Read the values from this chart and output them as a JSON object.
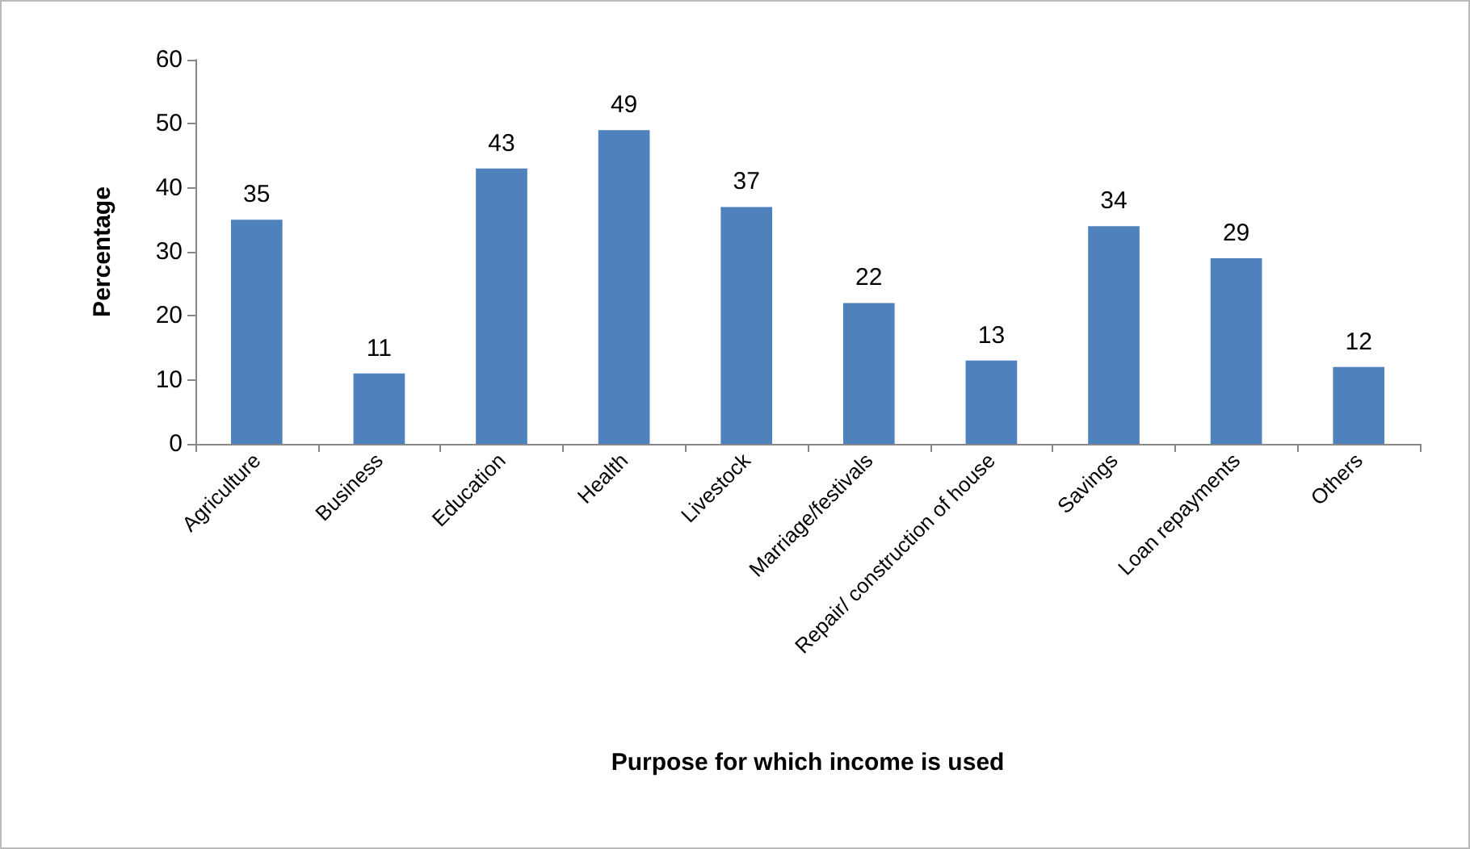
{
  "chart_data": {
    "type": "bar",
    "xlabel": "Purpose for which income is used",
    "ylabel": "Percentage",
    "categories": [
      "Agriculture",
      "Business",
      "Education",
      "Health",
      "Livestock",
      "Marriage/festivals",
      "Repair/ construction of house",
      "Savings",
      "Loan repayments",
      "Others"
    ],
    "values": [
      35,
      11,
      43,
      49,
      37,
      22,
      13,
      34,
      29,
      12
    ],
    "color": "#4f81bd",
    "ylim": [
      0,
      60
    ],
    "yticks": [
      0,
      10,
      20,
      30,
      40,
      50,
      60
    ],
    "grid": false,
    "data_labels": true
  }
}
